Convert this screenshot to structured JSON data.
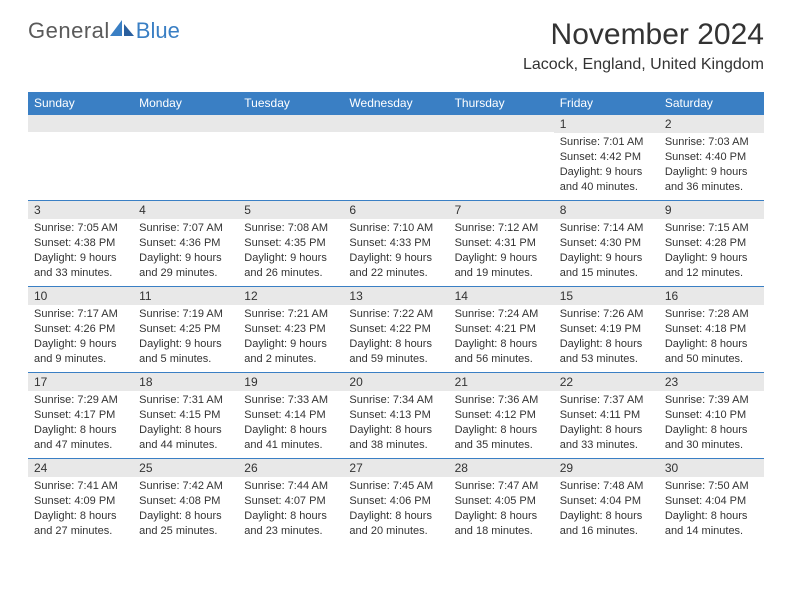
{
  "logo": {
    "text_general": "General",
    "text_blue": "Blue",
    "icon_color": "#3a7fc4"
  },
  "header": {
    "month_title": "November 2024",
    "location": "Lacock, England, United Kingdom"
  },
  "colors": {
    "header_bg": "#3a7fc4",
    "header_text": "#ffffff",
    "band_bg": "#e8e8e8",
    "text": "#333333",
    "border": "#3a7fc4"
  },
  "day_headers": [
    "Sunday",
    "Monday",
    "Tuesday",
    "Wednesday",
    "Thursday",
    "Friday",
    "Saturday"
  ],
  "weeks": [
    [
      {
        "day": "",
        "sunrise": "",
        "sunset": "",
        "daylight": ""
      },
      {
        "day": "",
        "sunrise": "",
        "sunset": "",
        "daylight": ""
      },
      {
        "day": "",
        "sunrise": "",
        "sunset": "",
        "daylight": ""
      },
      {
        "day": "",
        "sunrise": "",
        "sunset": "",
        "daylight": ""
      },
      {
        "day": "",
        "sunrise": "",
        "sunset": "",
        "daylight": ""
      },
      {
        "day": "1",
        "sunrise": "Sunrise: 7:01 AM",
        "sunset": "Sunset: 4:42 PM",
        "daylight": "Daylight: 9 hours and 40 minutes."
      },
      {
        "day": "2",
        "sunrise": "Sunrise: 7:03 AM",
        "sunset": "Sunset: 4:40 PM",
        "daylight": "Daylight: 9 hours and 36 minutes."
      }
    ],
    [
      {
        "day": "3",
        "sunrise": "Sunrise: 7:05 AM",
        "sunset": "Sunset: 4:38 PM",
        "daylight": "Daylight: 9 hours and 33 minutes."
      },
      {
        "day": "4",
        "sunrise": "Sunrise: 7:07 AM",
        "sunset": "Sunset: 4:36 PM",
        "daylight": "Daylight: 9 hours and 29 minutes."
      },
      {
        "day": "5",
        "sunrise": "Sunrise: 7:08 AM",
        "sunset": "Sunset: 4:35 PM",
        "daylight": "Daylight: 9 hours and 26 minutes."
      },
      {
        "day": "6",
        "sunrise": "Sunrise: 7:10 AM",
        "sunset": "Sunset: 4:33 PM",
        "daylight": "Daylight: 9 hours and 22 minutes."
      },
      {
        "day": "7",
        "sunrise": "Sunrise: 7:12 AM",
        "sunset": "Sunset: 4:31 PM",
        "daylight": "Daylight: 9 hours and 19 minutes."
      },
      {
        "day": "8",
        "sunrise": "Sunrise: 7:14 AM",
        "sunset": "Sunset: 4:30 PM",
        "daylight": "Daylight: 9 hours and 15 minutes."
      },
      {
        "day": "9",
        "sunrise": "Sunrise: 7:15 AM",
        "sunset": "Sunset: 4:28 PM",
        "daylight": "Daylight: 9 hours and 12 minutes."
      }
    ],
    [
      {
        "day": "10",
        "sunrise": "Sunrise: 7:17 AM",
        "sunset": "Sunset: 4:26 PM",
        "daylight": "Daylight: 9 hours and 9 minutes."
      },
      {
        "day": "11",
        "sunrise": "Sunrise: 7:19 AM",
        "sunset": "Sunset: 4:25 PM",
        "daylight": "Daylight: 9 hours and 5 minutes."
      },
      {
        "day": "12",
        "sunrise": "Sunrise: 7:21 AM",
        "sunset": "Sunset: 4:23 PM",
        "daylight": "Daylight: 9 hours and 2 minutes."
      },
      {
        "day": "13",
        "sunrise": "Sunrise: 7:22 AM",
        "sunset": "Sunset: 4:22 PM",
        "daylight": "Daylight: 8 hours and 59 minutes."
      },
      {
        "day": "14",
        "sunrise": "Sunrise: 7:24 AM",
        "sunset": "Sunset: 4:21 PM",
        "daylight": "Daylight: 8 hours and 56 minutes."
      },
      {
        "day": "15",
        "sunrise": "Sunrise: 7:26 AM",
        "sunset": "Sunset: 4:19 PM",
        "daylight": "Daylight: 8 hours and 53 minutes."
      },
      {
        "day": "16",
        "sunrise": "Sunrise: 7:28 AM",
        "sunset": "Sunset: 4:18 PM",
        "daylight": "Daylight: 8 hours and 50 minutes."
      }
    ],
    [
      {
        "day": "17",
        "sunrise": "Sunrise: 7:29 AM",
        "sunset": "Sunset: 4:17 PM",
        "daylight": "Daylight: 8 hours and 47 minutes."
      },
      {
        "day": "18",
        "sunrise": "Sunrise: 7:31 AM",
        "sunset": "Sunset: 4:15 PM",
        "daylight": "Daylight: 8 hours and 44 minutes."
      },
      {
        "day": "19",
        "sunrise": "Sunrise: 7:33 AM",
        "sunset": "Sunset: 4:14 PM",
        "daylight": "Daylight: 8 hours and 41 minutes."
      },
      {
        "day": "20",
        "sunrise": "Sunrise: 7:34 AM",
        "sunset": "Sunset: 4:13 PM",
        "daylight": "Daylight: 8 hours and 38 minutes."
      },
      {
        "day": "21",
        "sunrise": "Sunrise: 7:36 AM",
        "sunset": "Sunset: 4:12 PM",
        "daylight": "Daylight: 8 hours and 35 minutes."
      },
      {
        "day": "22",
        "sunrise": "Sunrise: 7:37 AM",
        "sunset": "Sunset: 4:11 PM",
        "daylight": "Daylight: 8 hours and 33 minutes."
      },
      {
        "day": "23",
        "sunrise": "Sunrise: 7:39 AM",
        "sunset": "Sunset: 4:10 PM",
        "daylight": "Daylight: 8 hours and 30 minutes."
      }
    ],
    [
      {
        "day": "24",
        "sunrise": "Sunrise: 7:41 AM",
        "sunset": "Sunset: 4:09 PM",
        "daylight": "Daylight: 8 hours and 27 minutes."
      },
      {
        "day": "25",
        "sunrise": "Sunrise: 7:42 AM",
        "sunset": "Sunset: 4:08 PM",
        "daylight": "Daylight: 8 hours and 25 minutes."
      },
      {
        "day": "26",
        "sunrise": "Sunrise: 7:44 AM",
        "sunset": "Sunset: 4:07 PM",
        "daylight": "Daylight: 8 hours and 23 minutes."
      },
      {
        "day": "27",
        "sunrise": "Sunrise: 7:45 AM",
        "sunset": "Sunset: 4:06 PM",
        "daylight": "Daylight: 8 hours and 20 minutes."
      },
      {
        "day": "28",
        "sunrise": "Sunrise: 7:47 AM",
        "sunset": "Sunset: 4:05 PM",
        "daylight": "Daylight: 8 hours and 18 minutes."
      },
      {
        "day": "29",
        "sunrise": "Sunrise: 7:48 AM",
        "sunset": "Sunset: 4:04 PM",
        "daylight": "Daylight: 8 hours and 16 minutes."
      },
      {
        "day": "30",
        "sunrise": "Sunrise: 7:50 AM",
        "sunset": "Sunset: 4:04 PM",
        "daylight": "Daylight: 8 hours and 14 minutes."
      }
    ]
  ]
}
